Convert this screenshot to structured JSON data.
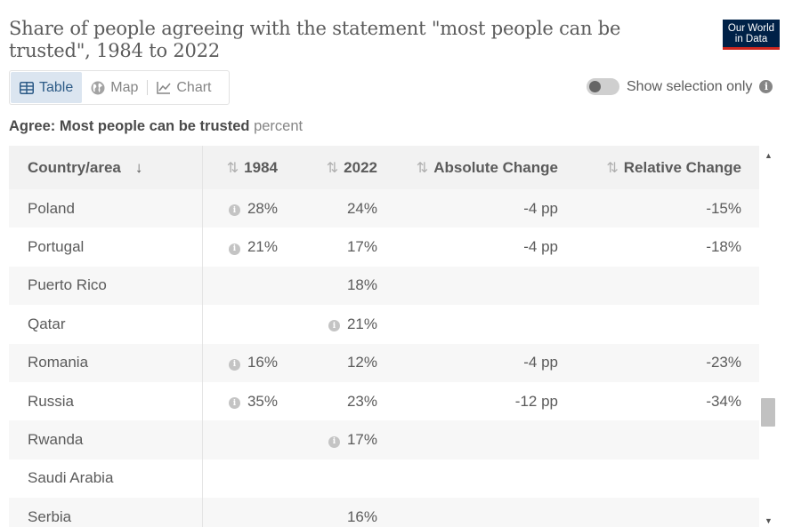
{
  "title": "Share of people agreeing with the statement \"most people can be trusted\", 1984 to 2022",
  "logo": {
    "line1": "Our World",
    "line2": "in Data"
  },
  "tabs": [
    {
      "label": "Table",
      "icon": "table-icon",
      "active": true
    },
    {
      "label": "Map",
      "icon": "globe-icon",
      "active": false
    },
    {
      "label": "Chart",
      "icon": "line-chart-icon",
      "active": false
    }
  ],
  "toggle": {
    "label": "Show selection only",
    "on": false
  },
  "subtitle": {
    "metric": "Agree: Most people can be trusted",
    "unit": "percent"
  },
  "table": {
    "headers": [
      "Country/area",
      "1984",
      "2022",
      "Absolute Change",
      "Relative Change"
    ],
    "rows": [
      {
        "country": "Poland",
        "y1984": "28%",
        "y1984_note": true,
        "y2022": "24%",
        "y2022_note": false,
        "abs": "-4 pp",
        "rel": "-15%"
      },
      {
        "country": "Portugal",
        "y1984": "21%",
        "y1984_note": true,
        "y2022": "17%",
        "y2022_note": false,
        "abs": "-4 pp",
        "rel": "-18%"
      },
      {
        "country": "Puerto Rico",
        "y1984": "",
        "y1984_note": false,
        "y2022": "18%",
        "y2022_note": false,
        "abs": "",
        "rel": ""
      },
      {
        "country": "Qatar",
        "y1984": "",
        "y1984_note": false,
        "y2022": "21%",
        "y2022_note": true,
        "abs": "",
        "rel": ""
      },
      {
        "country": "Romania",
        "y1984": "16%",
        "y1984_note": true,
        "y2022": "12%",
        "y2022_note": false,
        "abs": "-4 pp",
        "rel": "-23%"
      },
      {
        "country": "Russia",
        "y1984": "35%",
        "y1984_note": true,
        "y2022": "23%",
        "y2022_note": false,
        "abs": "-12 pp",
        "rel": "-34%"
      },
      {
        "country": "Rwanda",
        "y1984": "",
        "y1984_note": false,
        "y2022": "17%",
        "y2022_note": true,
        "abs": "",
        "rel": ""
      },
      {
        "country": "Saudi Arabia",
        "y1984": "",
        "y1984_note": false,
        "y2022": "",
        "y2022_note": false,
        "abs": "",
        "rel": ""
      },
      {
        "country": "Serbia",
        "y1984": "",
        "y1984_note": false,
        "y2022": "16%",
        "y2022_note": false,
        "abs": "",
        "rel": ""
      }
    ]
  },
  "colors": {
    "accent": "#2d5b87",
    "active_tab_bg": "#dbe5f0",
    "logo_bg": "#002147",
    "logo_underline": "#ce261e"
  }
}
